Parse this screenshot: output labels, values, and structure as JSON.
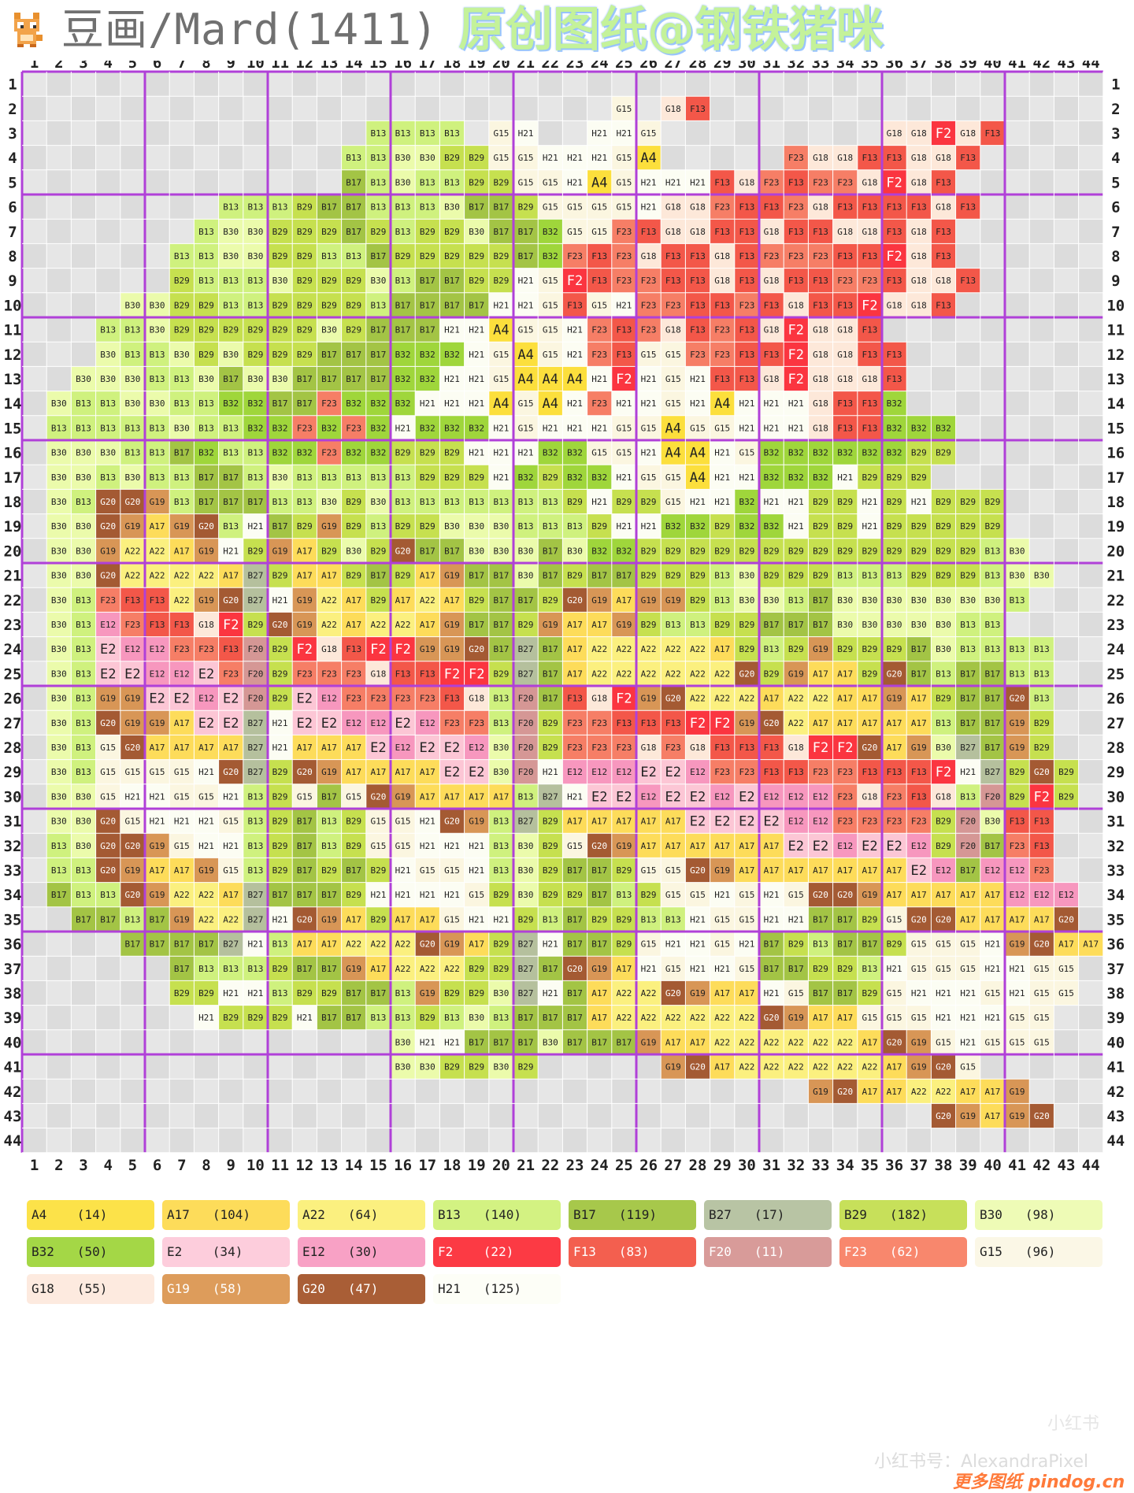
{
  "header": {
    "title": "豆画/Mard(1411)",
    "author": "原创图纸@钢铁猪咪"
  },
  "grid": {
    "size": 44,
    "cols": 44,
    "rows": 44,
    "col_labels": [
      "1",
      "2",
      "3",
      "4",
      "5",
      "6",
      "7",
      "8",
      "9",
      "10",
      "11",
      "12",
      "13",
      "14",
      "15",
      "16",
      "17",
      "18",
      "19",
      "20",
      "21",
      "22",
      "23",
      "24",
      "25",
      "26",
      "27",
      "28",
      "29",
      "30",
      "31",
      "32",
      "33",
      "34",
      "35",
      "36",
      "37",
      "38",
      "39",
      "40",
      "41",
      "42",
      "43",
      "44"
    ],
    "row_labels": [
      "1",
      "2",
      "3",
      "4",
      "5",
      "6",
      "7",
      "8",
      "9",
      "10",
      "11",
      "12",
      "13",
      "14",
      "15",
      "16",
      "17",
      "18",
      "19",
      "20",
      "21",
      "22",
      "23",
      "24",
      "25",
      "26",
      "27",
      "28",
      "29",
      "30",
      "31",
      "32",
      "33",
      "34",
      "35",
      "36",
      "37",
      "38",
      "39",
      "40",
      "41",
      "42",
      "43",
      "44"
    ],
    "pattern_rows": [
      "",
      "25:G15 36:G18 G18 F13",
      "15:B13 B13 B13 B13 . G15 H21 . . H21 H21 G15 . . . . . . . . . G18 G18 F2 G18 F13",
      "14:B13 B13 B30 B30 B29 B29 G15 G15 H21 H21 H21 G15 A4 . . . . . F23 G18 G18 F13 F13 G18 G18 F13",
      "14:B17 B13 B30 B13 B13 B29 B29 G15 G15 H21 A4 G15 H21 H21 H21 F13 G18 F23 F13 F23 F23 G18 F2 G18 F13",
      "9:B13 B13 B13 B29 B17 B17 B13 B13 B13 B30 B17 B17 B29 G15 G15 G15 G15 H21 G18 G18 F23 F13 F13 F23 G18 F13 F13 F13 F13 G18 F13",
      "8:B13 B30 B30 B29 B29 B29 B17 B29 B13 B29 B29 B30 B17 B17 B32 G15 G15 F23 F13 G18 G18 F13 F13 G18 F13 F13 G18 G18 F13 G18 F13",
      "7:B13 B13 B30 B30 B29 B29 B13 B13 B17 B29 B29 B29 B29 B29 B17 B32 F23 F13 F23 G18 F13 F13 G18 F13 F23 F23 F23 F13 F13 F2 G18 F13",
      "7:B29 B13 B13 B13 B30 B29 B29 B29 B30 B13 B17 B17 B29 B29 H21 G15 F2 F13 F23 F23 F13 F13 G18 F13 G18 F13 F13 F23 F23 F13 G18 G18 F13",
      "5:B30 B30 B29 B29 B13 B13 B29 B29 B29 B29 B13 B17 B17 B17 B17 H21 H21 G15 F13 G15 H21 F23 F23 F13 F13 F23 F13 G18 F13 F13 F2 G18 G18 F13",
      "4:B13 B13 B30 B29 B29 B29 B29 B29 B29 B30 B29 B17 B17 B17 H21 H21 A4 G15 G15 H21 F23 F13 F23 G18 F13 F23 F13 G18 F2 G18 G18 F13",
      "4:B30 B13 B13 B30 B29 B30 B29 B29 B29 B17 B17 B17 B32 B32 B32 H21 G15 A4 G15 H21 F23 F13 G15 G15 F23 F23 F13 F13 F2 G18 G18 F13 F13",
      "3:B30 B30 B30 B13 B13 B30 B17 B30 B30 B17 B17 B17 B17 B32 B32 H21 H21 G15 A4 A4 A4 H21 F2 H21 G15 H21 F13 F13 G18 F2 G18 G18 G18 F13",
      "2:B30 B13 B13 B30 B30 B13 B13 B32 B32 B17 B17 F23 B32 B32 B32 H21 H21 H21 A4 G15 A4 H21 F23 H21 H21 G15 H21 A4 H21 H21 H21 G18 F13 F13 B32",
      "2:B13 B13 B13 B13 B13 B30 B13 B13 B32 B32 F23 B32 F23 B32 H21 B32 B32 B32 H21 G15 H21 H21 H21 G15 G15 A4 G15 G15 H21 H21 H21 G18 F13 F13 B32 B32 B32",
      "2:B30 B30 B30 B13 B13 B17 B32 B13 B13 B32 B32 F23 B32 B32 B29 B29 B29 H21 H21 H21 B32 B32 G15 G15 H21 A4 A4 H21 G15 B32 B32 B32 B32 B32 B32 B29 B29",
      "2:B30 B30 B13 B30 B13 B13 B17 B17 B13 B30 B13 B13 B13 B13 B13 B29 B29 B29 H21 B32 B29 B32 B32 H21 G15 G15 A4 H21 H21 B32 B32 B32 H21 B29 B29 B29",
      "2:B30 B13 G20 G20 G19 B13 B17 B17 B17 B13 B13 B30 B29 B30 B13 B13 B13 B13 B13 B13 B13 B29 H21 B29 B29 G15 H21 H21 B32 H21 H21 B29 B29 H21 B29 H21 B29 B29 B29",
      "2:B30 B30 G20 G19 A17 G19 G20 B13 H21 B17 B29 G19 B29 B13 B29 B29 B30 B30 B30 B13 B13 B13 B29 H21 H21 B32 B32 B29 B32 B32 H21 B29 B29 H21 B29 B29 B29 B29 B29",
      "2:B30 B30 G19 A22 A22 A17 G19 H21 B29 G19 A17 B29 B30 B29 G20 B17 B17 B30 B30 B30 B17 B30 B32 B32 B29 B29 B29 B29 B29 B29 B29 B29 B29 B29 B29 B29 B29 B29 B13 B30",
      "2:B30 B30 G20 A22 A22 A22 A22 A17 B27 B29 A17 A17 B29 B17 B29 A17 G19 B17 B17 B30 B17 B29 B17 B17 B29 B29 B29 B13 B30 B29 B29 B29 B13 B13 B13 B29 B29 B29 B13 B30 B30",
      "2:B30 B13 F23 F13 F13 A22 G19 G20 B27 H21 G19 A22 A17 B29 A17 A22 A17 B29 B17 B17 B29 G20 G19 A17 G19 G19 B29 B13 B30 B30 B13 B17 B30 B30 B30 B30 B30 B30 B30 B13",
      "2:B30 B13 E12 F23 F13 F13 G18 F2 B29 G20 G19 A22 A17 A22 A22 A17 G19 B17 B17 B29 G19 A17 A17 G19 B29 B13 B13 B29 B29 B17 B17 B17 B30 B30 B30 B30 B30 B13 B13",
      "2:B30 B13 E2 E12 E12 F23 F23 F13 F20 B29 F2 G18 F13 F2 F2 G19 G19 G20 B17 B27 B17 A17 A22 A22 A22 A22 A22 A17 B29 B13 B29 G19 B29 B29 B29 B17 B30 B13 B13 B13 B13",
      "2:B30 B13 E2 E2 E12 E12 E2 F23 F20 B29 F23 F23 F23 G18 F13 F13 F2 F2 B29 B27 B17 A17 A22 A22 A22 A22 A22 A22 G20 B29 G19 A17 A17 B29 G20 B17 B13 B17 B17 B13 B13",
      "2:B30 B13 G19 G19 E2 E2 E12 E2 F20 B29 E2 E12 F23 F23 F23 F23 F13 G18 B13 F20 B17 F13 G18 F2 G19 G20 A22 A22 A22 A17 A22 A22 A17 A17 G19 A17 B29 B17 B17 G20 B13",
      "2:B30 B13 G20 G19 G19 A17 E2 E2 B27 H21 E2 E2 E12 E12 E2 E12 F23 F23 B13 F20 B29 F23 F23 F13 F13 F13 F2 F2 G19 G20 A22 A17 A17 A17 A17 A17 B13 B17 B17 G19 B29",
      "2:B30 B13 G15 G20 A17 A17 A17 A17 B27 H21 A17 A17 A17 E2 E12 E2 E2 E12 B30 F20 B29 F23 F23 F23 G18 F23 G18 F13 F13 F13 G18 F2 F2 G20 A17 G19 B30 B27 B17 G19 B29",
      "2:B30 B13 G15 G15 G15 G15 H21 G20 B27 B29 G20 G19 A17 A17 A17 A17 E2 E2 B30 F20 H21 E12 E12 E12 E2 E2 E12 F23 F23 F13 F13 F23 F23 F13 F13 F13 F2 H21 B27 B29 G20 B29",
      "2:B30 B30 G15 H21 H21 G15 G15 H21 B13 B29 G15 B17 G15 G20 G19 A17 A17 A17 A17 B13 B27 H21 E2 E2 E12 E2 E2 E12 E2 E12 E12 E12 F23 G18 F23 F13 G18 B13 F20 B29 F2 B29",
      "2:B30 B30 G20 G15 H21 H21 H21 G15 B13 B29 B17 B13 B29 G15 G15 H21 G20 G19 B13 B27 B29 A17 A17 A17 A17 A17 E2 E2 E2 E2 E12 E12 F23 F23 F23 F23 B29 F20 B30 F13 F13",
      "2:B13 B30 G20 G20 G19 G15 H21 H21 B13 B29 B17 B13 B29 G15 G15 H21 H21 H21 B13 B30 B29 G15 G20 G19 A17 A17 A17 A17 A17 A17 E2 E2 E12 E2 E2 E12 B29 F20 B17 F23 F13",
      "2:B13 B13 G20 G19 A17 A17 G19 G15 B13 B29 B17 B29 B17 B29 H21 G15 G15 H21 B13 B30 B29 B17 B17 B29 G15 G15 G20 G19 A17 A17 A17 A17 A17 A17 A17 E2 E12 B17 E12 E12 F23",
      "2:B17 B13 B13 G20 G19 A22 A22 A17 B27 B17 B17 B17 B29 H21 H21 H21 H21 G15 B29 B30 B29 B29 B17 B13 B29 G15 G15 H21 G15 H21 G15 G20 G20 G19 A17 A17 A17 A17 A17 E12 E12 E12",
      "3:B17 B17 B13 B17 G19 A22 A22 B27 H21 G20 G19 A17 B29 A17 A17 G15 H21 H21 B29 B13 B17 B29 B29 B13 B13 H21 G15 G15 H21 H21 B17 B17 B29 G15 G20 G20 A17 A17 A17 A17 G20",
      "5:B17 B17 B17 B17 B27 H21 B13 A17 A17 A22 A22 A22 G20 G19 A17 B29 B27 H21 B17 B17 B29 G15 H21 H21 G15 H21 B17 B29 B13 B17 B17 B29 G15 G15 G15 H21 G19 G20 A17 A17",
      "7:B17 B13 B13 B13 B29 B17 B17 G19 A17 A22 A22 A22 B29 B29 B27 B17 G20 G19 A17 H21 G15 H21 H21 G15 B17 B17 B29 B29 B13 H21 G15 G15 G15 H21 H21 G15 G15",
      "7:B29 B29 H21 H21 B13 B29 B29 B17 B17 B13 G19 B29 B29 B30 B27 H21 B17 A17 A22 A22 G20 G19 A17 A17 H21 G15 B17 B17 B29 G15 H21 H21 H21 G15 H21 G15 G15",
      "8:H21 B29 B29 B29 H21 B17 B17 B13 B13 B29 B13 B30 B13 B17 B17 B17 A17 A22 A22 A22 A22 A22 A22 G20 G19 A17 A17 G15 G15 G15 H21 H21 H21 G15 G15",
      "16:B30 H21 H21 B17 B17 B17 B30 B17 B17 B17 G19 A17 A17 A22 A22 A22 A22 A22 A22 A17 G20 G19 G15 H21 G15 G15 G15",
      "16:B30 B30 B29 B29 B30 B29 . . . . . G19 G20 A17 A22 A22 A22 A22 A22 A22 A17 G19 G20 G15",
      "33:G19 G20 A17 A17 A22 A22 A17 A17 G19",
      "38:G20 G19 A17 G19 G20",
      ""
    ]
  },
  "palette": {
    "A4": "#fcdf3c",
    "A17": "#fddc5a",
    "A22": "#fbf07f",
    "B13": "#cff17e",
    "B17": "#a3c445",
    "B27": "#b5c09d",
    "B29": "#c6e04f",
    "B30": "#ebfbab",
    "B32": "#9fd63b",
    "E2": "#fcc6d5",
    "E12": "#f797be",
    "F2": "#fb3540",
    "F13": "#f35749",
    "F20": "#d59795",
    "F23": "#f67e66",
    "G15": "#fbf6e0",
    "G18": "#fde8d9",
    "G19": "#d89656",
    "G20": "#a45a33",
    "H21": "#fcfdf3"
  },
  "legend": [
    {
      "code": "A4",
      "count": "(14)",
      "color": "#fce249"
    },
    {
      "code": "A17",
      "count": "(104)",
      "color": "#fddc5a"
    },
    {
      "code": "A22",
      "count": "(64)",
      "color": "#fbf07f"
    },
    {
      "code": "B13",
      "count": "(140)",
      "color": "#d3f282"
    },
    {
      "code": "B17",
      "count": "(119)",
      "color": "#a7c84b"
    },
    {
      "code": "B27",
      "count": "(17)",
      "color": "#b8c4a4"
    },
    {
      "code": "B29",
      "count": "(182)",
      "color": "#c7e05a"
    },
    {
      "code": "B30",
      "count": "(98)",
      "color": "#eefbb6"
    },
    {
      "code": "B32",
      "count": "(50)",
      "color": "#a4d746"
    },
    {
      "code": "E2",
      "count": "(34)",
      "color": "#fdcddc"
    },
    {
      "code": "E12",
      "count": "(30)",
      "color": "#f8a1c5"
    },
    {
      "code": "F2",
      "count": "(22)",
      "color": "#fc3a44"
    },
    {
      "code": "F13",
      "count": "(83)",
      "color": "#f35f4f"
    },
    {
      "code": "F20",
      "count": "(11)",
      "color": "#d89b99"
    },
    {
      "code": "F23",
      "count": "(62)",
      "color": "#f8876d"
    },
    {
      "code": "G15",
      "count": "(96)",
      "color": "#fbf7e6"
    },
    {
      "code": "G18",
      "count": "(55)",
      "color": "#fdeadf"
    },
    {
      "code": "G19",
      "count": "(58)",
      "color": "#dd9c5b"
    },
    {
      "code": "G20",
      "count": "(47)",
      "color": "#a95e36"
    },
    {
      "code": "H21",
      "count": "(125)",
      "color": "#fdfef7"
    }
  ],
  "watermark": {
    "line1": "小红书",
    "line2": "小红书号：AlexandraPixel",
    "line3": "更多图纸 pindog.cn"
  }
}
